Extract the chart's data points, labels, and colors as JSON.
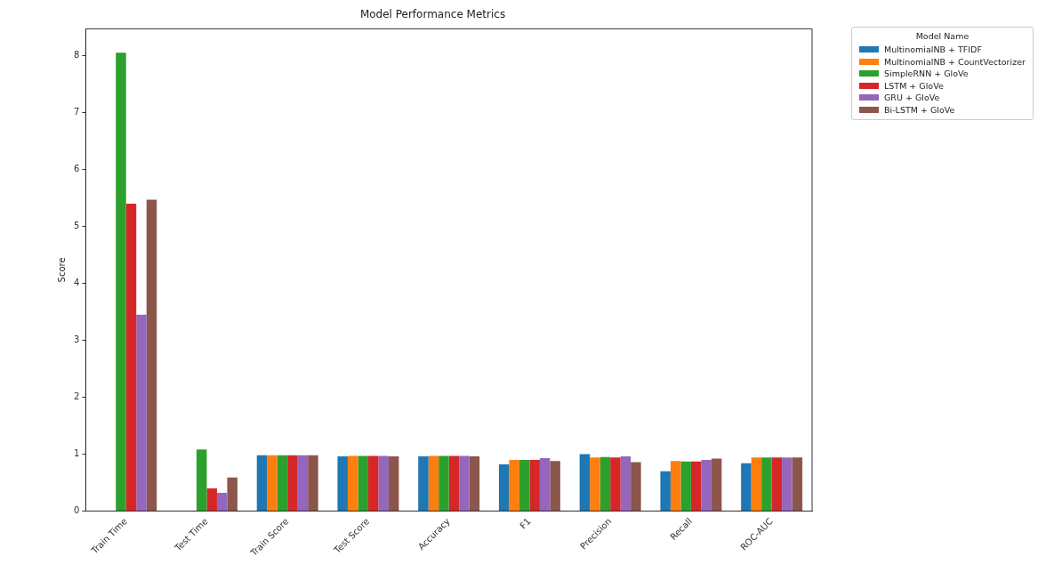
{
  "chart_data": {
    "type": "bar",
    "title": "Model Performance Metrics",
    "ylabel": "Score",
    "legend_title": "Model Name",
    "categories": [
      "Train Time",
      "Test Time",
      "Train Score",
      "Test Score",
      "Accuracy",
      "F1",
      "Precision",
      "Recall",
      "ROC-AUC"
    ],
    "series": [
      {
        "name": "MultinomialNB + TFIDF",
        "color": "#1f77b4",
        "values": [
          null,
          0.0,
          0.98,
          0.96,
          0.96,
          0.82,
          1.0,
          0.7,
          0.84
        ]
      },
      {
        "name": "MultinomialNB + CountVectorizer",
        "color": "#ff7f0e",
        "values": [
          null,
          0.0,
          0.98,
          0.97,
          0.97,
          0.9,
          0.94,
          0.88,
          0.94
        ]
      },
      {
        "name": "SimpleRNN + GloVe",
        "color": "#2ca02c",
        "values": [
          8.05,
          1.08,
          0.98,
          0.97,
          0.97,
          0.9,
          0.95,
          0.87,
          0.94
        ]
      },
      {
        "name": "LSTM + GloVe",
        "color": "#d62728",
        "values": [
          5.4,
          0.4,
          0.98,
          0.97,
          0.97,
          0.9,
          0.94,
          0.87,
          0.94
        ]
      },
      {
        "name": "GRU + GloVe",
        "color": "#9467bd",
        "values": [
          3.45,
          0.32,
          0.98,
          0.97,
          0.97,
          0.93,
          0.96,
          0.9,
          0.94
        ]
      },
      {
        "name": "Bi-LSTM + GloVe",
        "color": "#8c564b",
        "values": [
          5.47,
          0.59,
          0.98,
          0.96,
          0.96,
          0.88,
          0.86,
          0.92,
          0.94
        ]
      }
    ],
    "ylim": [
      0,
      8.47
    ],
    "yticks": [
      0,
      1,
      2,
      3,
      4,
      5,
      6,
      7,
      8
    ],
    "grid": false,
    "legend": "top right"
  }
}
